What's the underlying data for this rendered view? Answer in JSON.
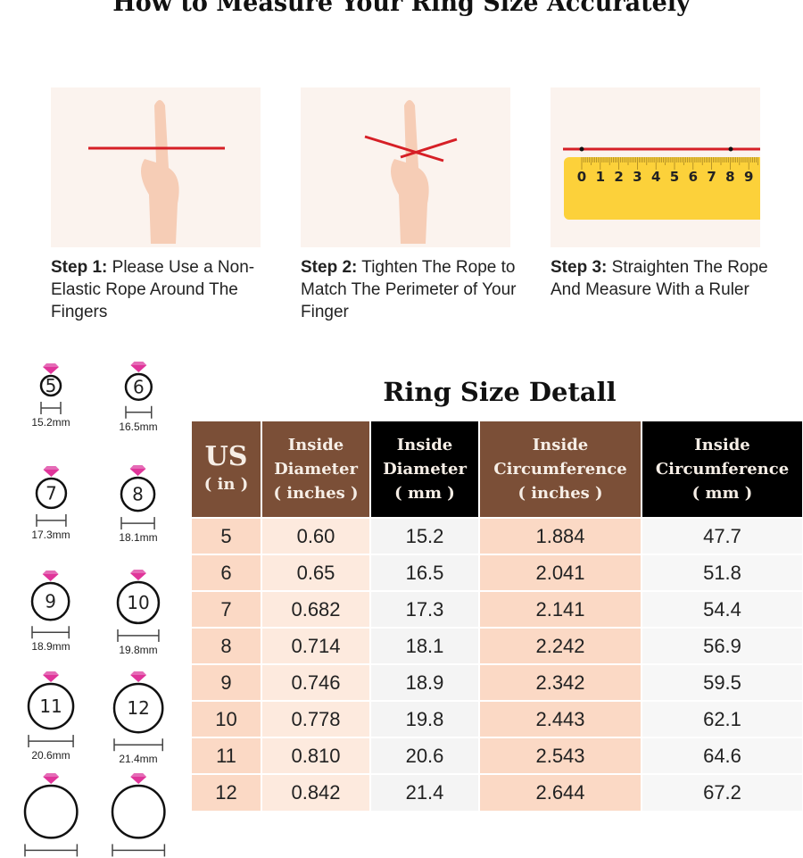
{
  "title": "How to Measure Your Ring Size Accurately",
  "steps": [
    {
      "label": "Step 1:",
      "text": "Please Use a Non-Elastic Rope Around The Fingers"
    },
    {
      "label": "Step 2:",
      "text": "Tighten The Rope to Match The Perimeter of Your Finger"
    },
    {
      "label": "Step 3:",
      "text": "Straighten The Rope And Measure With a Ruler"
    }
  ],
  "ruler_numbers": [
    "0",
    "1",
    "2",
    "3",
    "4",
    "5",
    "6",
    "7",
    "8",
    "9"
  ],
  "rings": [
    {
      "size": "5",
      "mm": "15.2mm"
    },
    {
      "size": "6",
      "mm": "16.5mm"
    },
    {
      "size": "7",
      "mm": "17.3mm"
    },
    {
      "size": "8",
      "mm": "18.1mm"
    },
    {
      "size": "9",
      "mm": "18.9mm"
    },
    {
      "size": "10",
      "mm": "19.8mm"
    },
    {
      "size": "11",
      "mm": "20.6mm"
    },
    {
      "size": "12",
      "mm": "21.4mm"
    },
    {
      "size": "",
      "mm": ""
    },
    {
      "size": "",
      "mm": ""
    }
  ],
  "table": {
    "title": "Ring Size Detall",
    "headers": [
      {
        "l1": "US",
        "l2": "( in )"
      },
      {
        "l1": "Inside",
        "l2": "Diameter",
        "l3": "( inches )"
      },
      {
        "l1": "Inside",
        "l2": "Diameter",
        "l3": "( mm )"
      },
      {
        "l1": "Inside",
        "l2": "Circumference",
        "l3": "( inches )"
      },
      {
        "l1": "Inside",
        "l2": "Circumference",
        "l3": "( mm )"
      }
    ],
    "rows": [
      [
        "5",
        "0.60",
        "15.2",
        "1.884",
        "47.7"
      ],
      [
        "6",
        "0.65",
        "16.5",
        "2.041",
        "51.8"
      ],
      [
        "7",
        "0.682",
        "17.3",
        "2.141",
        "54.4"
      ],
      [
        "8",
        "0.714",
        "18.1",
        "2.242",
        "56.9"
      ],
      [
        "9",
        "0.746",
        "18.9",
        "2.342",
        "59.5"
      ],
      [
        "10",
        "0.778",
        "19.8",
        "2.443",
        "62.1"
      ],
      [
        "11",
        "0.810",
        "20.6",
        "2.543",
        "64.6"
      ],
      [
        "12",
        "0.842",
        "21.4",
        "2.644",
        "67.2"
      ]
    ]
  },
  "colors": {
    "brown": "#7b4f37",
    "black": "#000000",
    "peach": "#fbd9c5",
    "gem": "#e0359a",
    "rope": "#d61f26",
    "ruler": "#fcd13a"
  }
}
